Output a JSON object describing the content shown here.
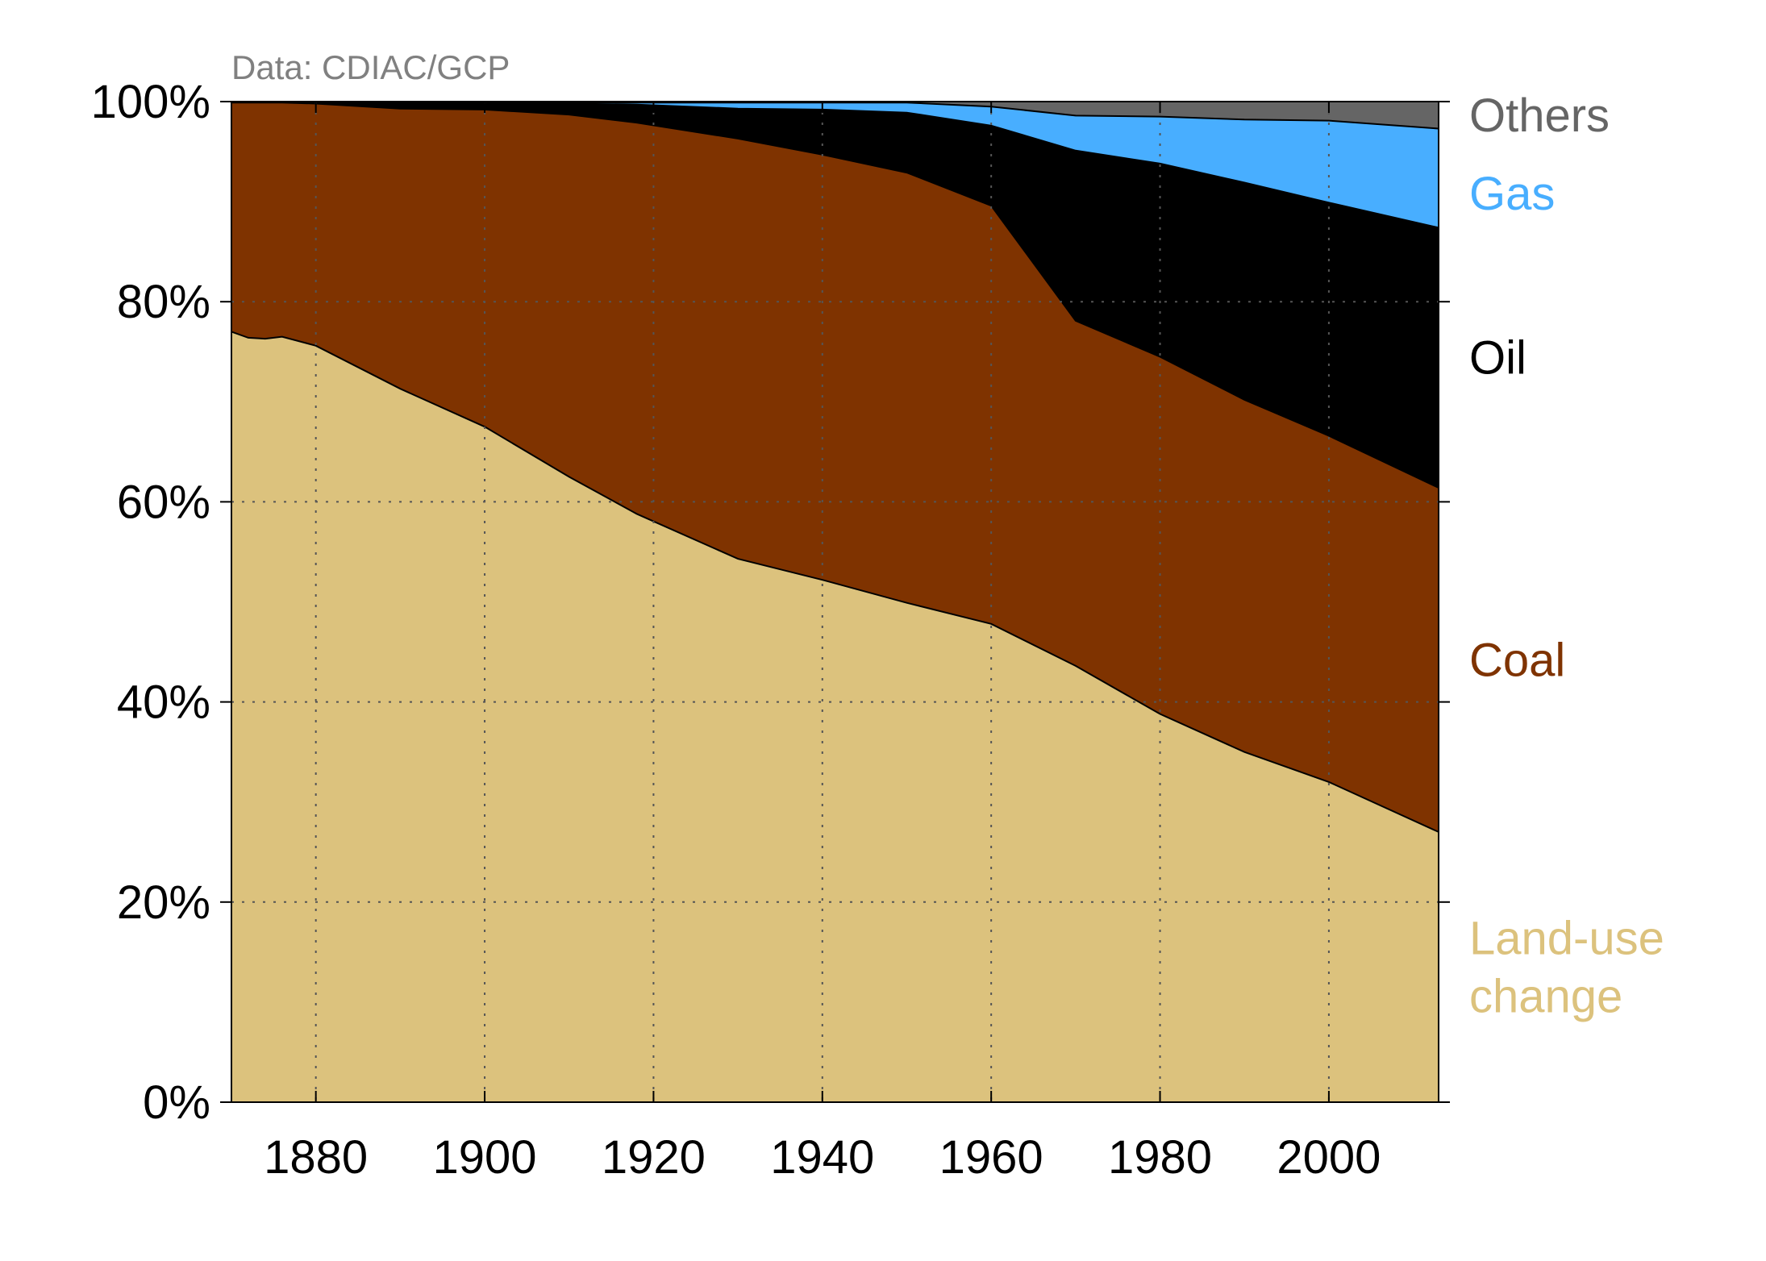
{
  "chart_data": {
    "type": "area",
    "stacked": true,
    "normalized": true,
    "source": "Data: CDIAC/GCP",
    "x_ticks": [
      1880,
      1900,
      1920,
      1940,
      1960,
      1980,
      2000
    ],
    "x_tick_labels": [
      "1880",
      "1900",
      "1920",
      "1940",
      "1960",
      "1980",
      "2000"
    ],
    "y_ticks": [
      0,
      20,
      40,
      60,
      80,
      100
    ],
    "y_tick_labels": [
      "0%",
      "20%",
      "40%",
      "60%",
      "80%",
      "100%"
    ],
    "xlim": [
      1870,
      2013
    ],
    "ylim": [
      0,
      100
    ],
    "grid": true,
    "legend_placement": "right, labels aligned with each band",
    "x": [
      1870,
      1872,
      1874,
      1876,
      1880,
      1890,
      1900,
      1910,
      1918,
      1930,
      1940,
      1950,
      1960,
      1970,
      1980,
      1990,
      2000,
      2013
    ],
    "series": [
      {
        "name": "Land-use change",
        "label_lines": [
          "Land-use",
          "change"
        ],
        "color": "#dcc27d",
        "values": [
          77,
          76.4,
          76.3,
          76.5,
          75.6,
          71.3,
          67.5,
          62.5,
          58.8,
          54.3,
          52.2,
          49.9,
          47.8,
          43.6,
          38.8,
          35.0,
          32.0,
          27.0
        ]
      },
      {
        "name": "Coal",
        "label_lines": [
          "Coal"
        ],
        "color": "#7f3300",
        "values": [
          22.9,
          23.5,
          23.6,
          23.4,
          24.2,
          28.0,
          31.7,
          36.2,
          39.1,
          42.0,
          42.5,
          43.0,
          41.8,
          34.5,
          35.7,
          35.2,
          34.6,
          34.4
        ]
      },
      {
        "name": "Oil",
        "label_lines": [
          "Oil"
        ],
        "color": "#000000",
        "values": [
          0.1,
          0.1,
          0.1,
          0.1,
          0.2,
          0.6,
          0.7,
          1.1,
          1.8,
          3.0,
          4.5,
          6.0,
          8.0,
          17.0,
          19.3,
          21.7,
          23.3,
          26.0
        ]
      },
      {
        "name": "Gas",
        "label_lines": [
          "Gas"
        ],
        "color": "#48aeff",
        "values": [
          0.0,
          0.0,
          0.0,
          0.0,
          0.0,
          0.0,
          0.0,
          0.1,
          0.2,
          0.6,
          0.7,
          1.0,
          1.9,
          3.5,
          4.7,
          6.3,
          8.2,
          9.9
        ]
      },
      {
        "name": "Others",
        "label_lines": [
          "Others"
        ],
        "color": "#656565",
        "values": [
          0.0,
          0.0,
          0.0,
          0.0,
          0.0,
          0.1,
          0.1,
          0.1,
          0.1,
          0.1,
          0.1,
          0.1,
          0.5,
          1.4,
          1.5,
          1.8,
          1.9,
          2.7
        ]
      }
    ]
  }
}
